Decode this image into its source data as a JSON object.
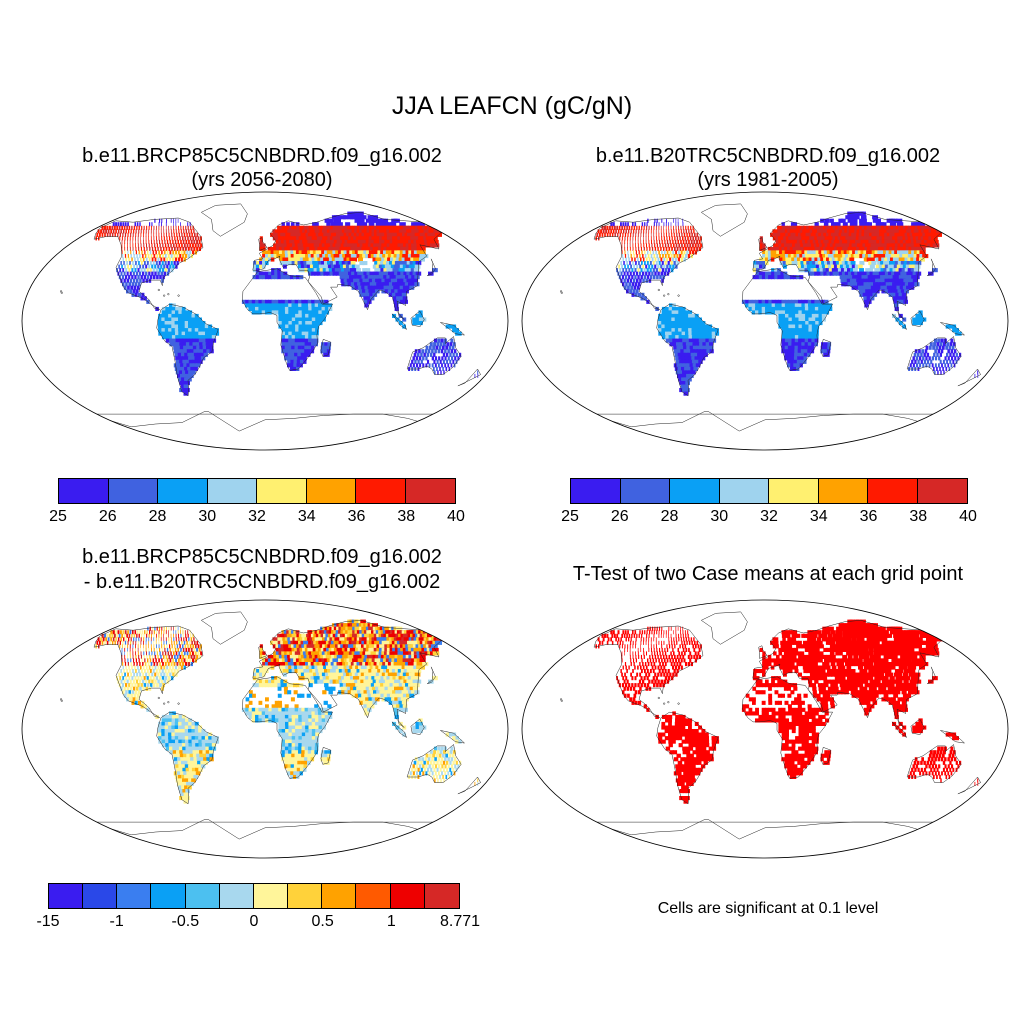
{
  "figure": {
    "title": "JJA LEAFCN (gC/gN)"
  },
  "panels": [
    {
      "title_line1": "b.e11.BRCP85C5CNBDRD.f09_g16.002",
      "title_line2": "(yrs 2056-2080)",
      "type": "field",
      "colorbar": {
        "colors": [
          "#3a1cf0",
          "#4062e0",
          "#0aa0f5",
          "#9fd3ee",
          "#fff070",
          "#ffa200",
          "#ff1a00",
          "#d62826"
        ],
        "labels": [
          "25",
          "26",
          "28",
          "30",
          "32",
          "34",
          "36",
          "38",
          "40"
        ]
      }
    },
    {
      "title_line1": "b.e11.B20TRC5CNBDRD.f09_g16.002",
      "title_line2": "(yrs 1981-2005)",
      "type": "field",
      "colorbar": {
        "colors": [
          "#3a1cf0",
          "#4062e0",
          "#0aa0f5",
          "#9fd3ee",
          "#fff070",
          "#ffa200",
          "#ff1a00",
          "#d62826"
        ],
        "labels": [
          "25",
          "26",
          "28",
          "30",
          "32",
          "34",
          "36",
          "38",
          "40"
        ]
      }
    },
    {
      "title_line1": "b.e11.BRCP85C5CNBDRD.f09_g16.002",
      "title_line2": "- b.e11.B20TRC5CNBDRD.f09_g16.002",
      "type": "difference",
      "colorbar": {
        "colors": [
          "#3a1cf0",
          "#2a48e8",
          "#3a7ef0",
          "#0aa0f5",
          "#4cc0f0",
          "#a8d8ee",
          "#fff59a",
          "#ffd23a",
          "#ffa200",
          "#ff5a00",
          "#ee0000",
          "#d62826"
        ],
        "labels": [
          "-15",
          "-1",
          "-0.5",
          "0",
          "0.5",
          "1",
          "8.771"
        ]
      }
    },
    {
      "title_line1": "T-Test of two Case means at each grid point",
      "type": "significance",
      "sig_color": "#ff0000",
      "note": "Cells are significant at 0.1 level"
    }
  ]
}
